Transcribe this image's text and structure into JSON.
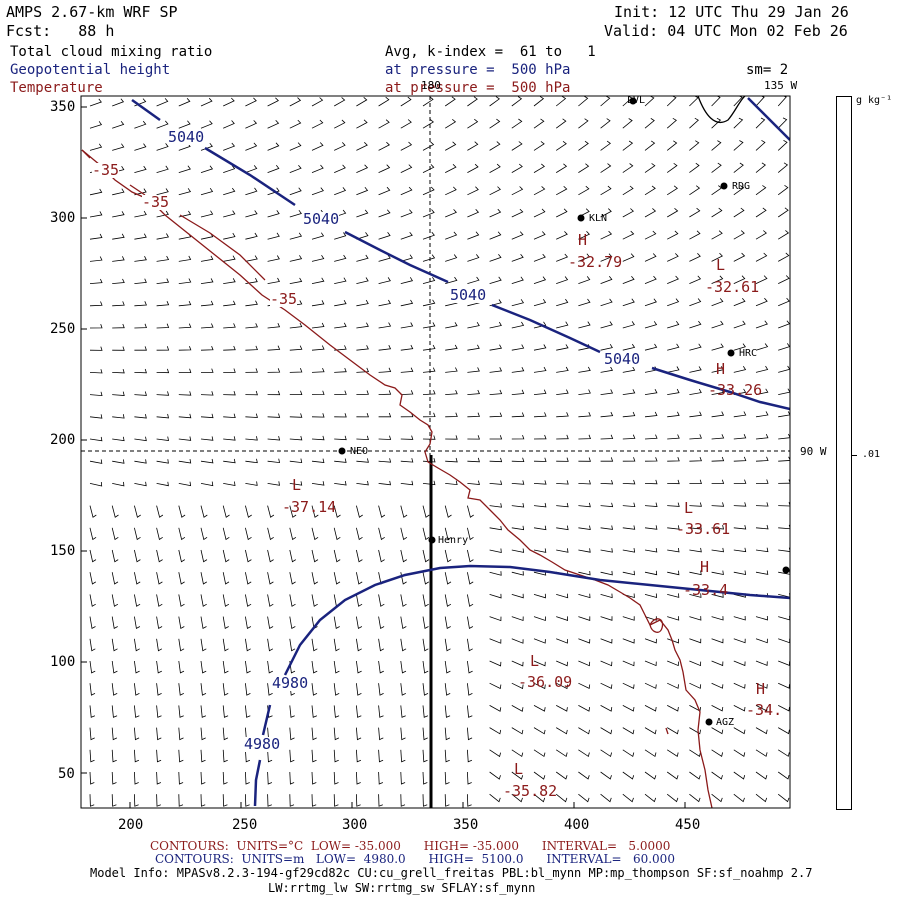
{
  "header": {
    "model_title": "AMPS 2.67-km WRF SP",
    "forecast": "Fcst:   88 h",
    "init": "Init: 12 UTC Thu 29 Jan 26",
    "valid": "Valid: 04 UTC Mon 02 Feb 26",
    "field1": "Total cloud mixing ratio",
    "field2": "Geopotential height",
    "field3": "Temperature",
    "avg_label": "Avg, k-index =  61 to   1",
    "pressure1": "at pressure =  500 hPa",
    "pressure2": "at pressure =  500 hPa",
    "smooth": "sm= 2"
  },
  "axes": {
    "x_ticks": [
      "200",
      "250",
      "300",
      "350",
      "400",
      "450"
    ],
    "y_ticks": [
      "350",
      "300",
      "250",
      "200",
      "150",
      "100",
      "50"
    ],
    "lon_top": "180",
    "lon_top_right": "135 W",
    "lon_right": "90 W"
  },
  "colorbar": {
    "units": "g kg⁻¹",
    "value": ".01"
  },
  "stations": [
    {
      "name": "LVL"
    },
    {
      "name": "RDG"
    },
    {
      "name": "KLN"
    },
    {
      "name": "HRC"
    },
    {
      "name": "NEO"
    },
    {
      "name": "Henry"
    },
    {
      "name": "AGZ"
    }
  ],
  "height_labels": [
    "5040",
    "5040",
    "5040",
    "5040",
    "4980",
    "4980"
  ],
  "temp_labels": [
    "-35",
    "-35",
    "-35"
  ],
  "highs_lows": [
    {
      "sym": "H",
      "val": "-32.79"
    },
    {
      "sym": "L",
      "val": "-32.61"
    },
    {
      "sym": "H",
      "val": "-33.26"
    },
    {
      "sym": "L",
      "val": "-37.14"
    },
    {
      "sym": "L",
      "val": "-33.61"
    },
    {
      "sym": "H",
      "val": "-33.4"
    },
    {
      "sym": "L",
      "val": "-36.09"
    },
    {
      "sym": "H",
      "val": "-34."
    },
    {
      "sym": "L",
      "val": "-35.82"
    }
  ],
  "footer": {
    "temp_contours": "CONTOURS:  UNITS=°C  LOW= -35.000      HIGH= -35.000      INTERVAL=   5.0000",
    "height_contours": "CONTOURS:  UNITS=m   LOW=  4980.0      HIGH=  5100.0      INTERVAL=   60.000",
    "model_info1": "Model Info: MPASv8.2.3-194-gf29cd82c CU:cu_grell_freitas PBL:bl_mynn MP:mp_thompson SF:sf_noahmp 2.7",
    "model_info2": "LW:rrtmg_lw SW:rrtmg_sw SFLAY:sf_mynn"
  },
  "colors": {
    "height": "#1a237e",
    "temperature": "#8b1a1a",
    "barbs": "#000000"
  }
}
